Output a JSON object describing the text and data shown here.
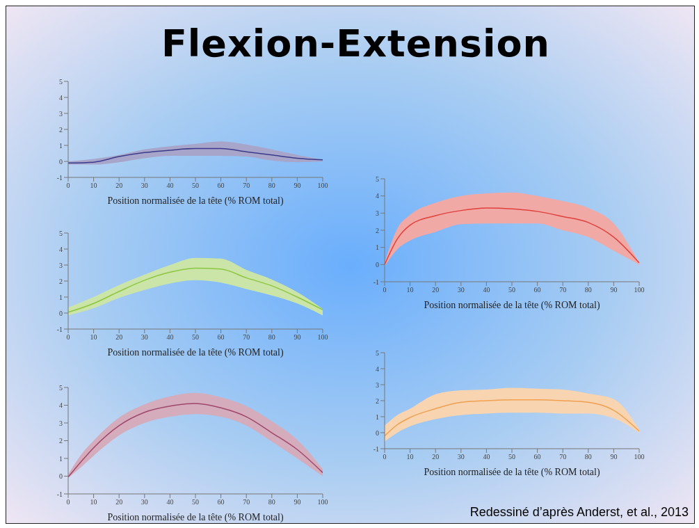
{
  "chart_data": [
    {
      "type": "other",
      "title": "Flexion-Extension",
      "annotations": [
        "Redessiné d’après Anderst, et al., 2013"
      ]
    },
    {
      "type": "line",
      "x": [
        0,
        10,
        20,
        30,
        40,
        50,
        60,
        70,
        80,
        90,
        100
      ],
      "xlabel": "Position normalisée de la tête (% ROM total)",
      "xlim": [
        0,
        100
      ],
      "xticks": [
        0,
        10,
        20,
        30,
        40,
        50,
        60,
        70,
        80,
        90,
        100
      ],
      "ylim": [
        -1,
        5
      ],
      "yticks": [
        -1,
        0,
        1,
        2,
        3,
        4,
        5
      ],
      "grid": false,
      "legend": false,
      "series": [
        {
          "color": "#3b3a8a",
          "values": [
            -0.1,
            -0.05,
            0.3,
            0.55,
            0.7,
            0.8,
            0.8,
            0.6,
            0.4,
            0.2,
            0.1
          ],
          "lower": [
            -0.2,
            -0.2,
            -0.05,
            0.2,
            0.35,
            0.35,
            0.35,
            0.3,
            0.05,
            -0.05,
            0.0
          ],
          "upper": [
            0.0,
            0.15,
            0.4,
            0.75,
            0.95,
            1.1,
            1.25,
            1.05,
            0.75,
            0.4,
            0.1
          ]
        }
      ]
    },
    {
      "type": "line",
      "x": [
        0,
        10,
        20,
        30,
        40,
        50,
        60,
        70,
        80,
        90,
        100
      ],
      "xlabel": "Position normalisée de la tête (% ROM total)",
      "xlim": [
        0,
        100
      ],
      "xticks": [
        0,
        10,
        20,
        30,
        40,
        50,
        60,
        70,
        80,
        90,
        100
      ],
      "ylim": [
        -1,
        5
      ],
      "yticks": [
        -1,
        0,
        1,
        2,
        3,
        4,
        5
      ],
      "grid": false,
      "legend": false,
      "series": [
        {
          "color": "#8cc63f",
          "values": [
            0.05,
            0.6,
            1.35,
            2.05,
            2.55,
            2.8,
            2.75,
            2.2,
            1.7,
            1.0,
            0.2
          ],
          "lower": [
            -0.15,
            0.3,
            0.95,
            1.45,
            1.85,
            2.05,
            1.9,
            1.5,
            1.1,
            0.6,
            -0.15
          ],
          "upper": [
            0.35,
            1.0,
            1.75,
            2.4,
            3.0,
            3.45,
            3.4,
            2.7,
            2.1,
            1.3,
            0.25
          ]
        }
      ]
    },
    {
      "type": "line",
      "x": [
        0,
        5,
        10,
        20,
        30,
        40,
        50,
        60,
        70,
        80,
        90,
        100
      ],
      "xlabel": "Position normalisée de la tête (% ROM total)",
      "xlim": [
        0,
        100
      ],
      "xticks": [
        0,
        10,
        20,
        30,
        40,
        50,
        60,
        70,
        80,
        90,
        100
      ],
      "ylim": [
        -1,
        5
      ],
      "yticks": [
        -1,
        0,
        1,
        2,
        3,
        4,
        5
      ],
      "grid": false,
      "legend": false,
      "series": [
        {
          "color": "#a0466a",
          "values": [
            -0.05,
            0.8,
            1.6,
            2.85,
            3.6,
            3.95,
            4.1,
            3.85,
            3.35,
            2.45,
            1.5,
            0.2
          ],
          "lower": [
            -0.1,
            0.5,
            1.15,
            2.3,
            3.0,
            3.35,
            3.5,
            3.35,
            2.85,
            1.95,
            1.0,
            0.0
          ],
          "upper": [
            0.1,
            1.2,
            2.0,
            3.3,
            4.05,
            4.5,
            4.7,
            4.45,
            3.95,
            3.1,
            2.05,
            0.4
          ]
        }
      ]
    },
    {
      "type": "line",
      "x": [
        0,
        5,
        10,
        20,
        30,
        40,
        50,
        60,
        70,
        80,
        90,
        100
      ],
      "xlabel": "Position normalisée de la tête (% ROM total)",
      "xlim": [
        0,
        100
      ],
      "xticks": [
        0,
        10,
        20,
        30,
        40,
        50,
        60,
        70,
        80,
        90,
        100
      ],
      "ylim": [
        -1,
        5
      ],
      "yticks": [
        -1,
        0,
        1,
        2,
        3,
        4,
        5
      ],
      "grid": false,
      "legend": false,
      "series": [
        {
          "color": "#e0403a",
          "values": [
            0,
            1.5,
            2.3,
            2.85,
            3.15,
            3.3,
            3.25,
            3.1,
            2.8,
            2.45,
            1.6,
            0.1
          ],
          "lower": [
            -0.1,
            0.9,
            1.4,
            1.9,
            2.35,
            2.4,
            2.4,
            2.4,
            2.0,
            1.6,
            0.8,
            0.0
          ],
          "upper": [
            0.1,
            2.1,
            2.9,
            3.6,
            4.0,
            4.15,
            4.2,
            4.0,
            3.7,
            3.3,
            2.4,
            0.1
          ]
        }
      ]
    },
    {
      "type": "line",
      "x": [
        0,
        5,
        10,
        20,
        30,
        40,
        50,
        60,
        70,
        80,
        90,
        100
      ],
      "xlabel": "Position normalisée de la tête (% ROM total)",
      "xlim": [
        0,
        100
      ],
      "xticks": [
        0,
        10,
        20,
        30,
        40,
        50,
        60,
        70,
        80,
        90,
        100
      ],
      "ylim": [
        -1,
        5
      ],
      "yticks": [
        -1,
        0,
        1,
        2,
        3,
        4,
        5
      ],
      "grid": false,
      "legend": false,
      "series": [
        {
          "color": "#f0a050",
          "values": [
            -0.2,
            0.5,
            0.95,
            1.5,
            1.9,
            2.0,
            2.05,
            2.05,
            2.0,
            1.9,
            1.4,
            0.1
          ],
          "lower": [
            -0.55,
            0.0,
            0.4,
            0.85,
            1.1,
            1.2,
            1.25,
            1.25,
            1.2,
            1.2,
            0.9,
            0.0
          ],
          "upper": [
            0.45,
            1.1,
            1.5,
            2.4,
            2.65,
            2.7,
            2.8,
            2.75,
            2.7,
            2.45,
            2.1,
            0.2
          ]
        }
      ]
    }
  ]
}
